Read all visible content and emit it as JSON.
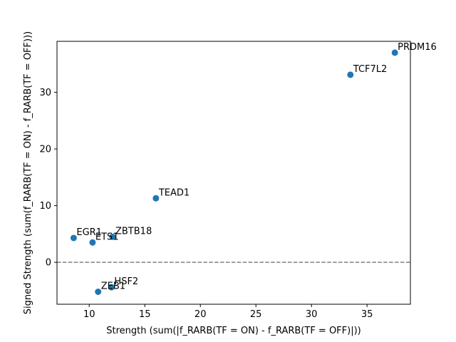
{
  "chart_data": {
    "type": "scatter",
    "title": "",
    "xlabel": "Strength (sum(|f_RARB(TF = ON) - f_RARB(TF = OFF)|))",
    "ylabel": "Signed Strength (sum(f_RARB(TF = ON) - f_RARB(TF = OFF)))",
    "xlim": [
      7.1,
      38.9
    ],
    "ylim": [
      -7.4,
      39.0
    ],
    "xticks": [
      10,
      15,
      20,
      25,
      30,
      35
    ],
    "yticks": [
      0,
      10,
      20,
      30
    ],
    "grid": false,
    "reference_line": {
      "y": 0,
      "style": "dashed",
      "color": "#808080"
    },
    "point_color": "#1f77b4",
    "points": [
      {
        "label": "PRDM16",
        "x": 37.5,
        "y": 37.0
      },
      {
        "label": "TCF7L2",
        "x": 33.5,
        "y": 33.1
      },
      {
        "label": "TEAD1",
        "x": 16.0,
        "y": 11.3
      },
      {
        "label": "EGR1",
        "x": 8.6,
        "y": 4.3
      },
      {
        "label": "ZBTB18",
        "x": 12.1,
        "y": 4.5
      },
      {
        "label": "ETS1",
        "x": 10.3,
        "y": 3.5
      },
      {
        "label": "HSF2",
        "x": 12.0,
        "y": -4.4
      },
      {
        "label": "ZEB1",
        "x": 10.8,
        "y": -5.2
      }
    ]
  }
}
